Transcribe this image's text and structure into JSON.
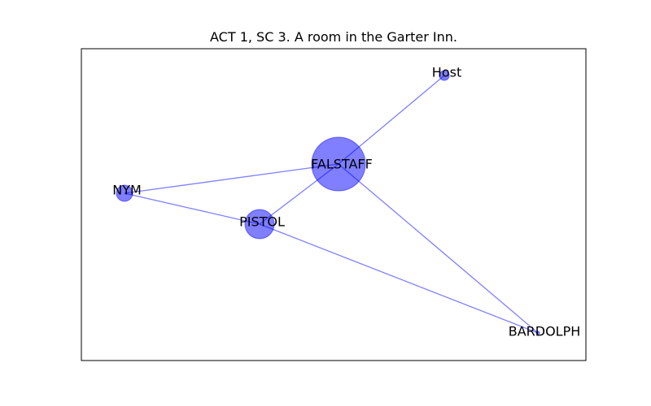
{
  "title": "ACT 1, SC 3. A room in the Garter Inn.",
  "colors": {
    "node": "#0000ff",
    "edge": "#0000ff",
    "frame": "#000000",
    "label": "#000000"
  },
  "nodes": [
    {
      "id": "FALSTAFF",
      "label": "FALSTAFF",
      "weight": 10
    },
    {
      "id": "Host",
      "label": "Host",
      "weight": 1
    },
    {
      "id": "NYM",
      "label": "NYM",
      "weight": 2
    },
    {
      "id": "PISTOL",
      "label": "PISTOL",
      "weight": 4
    },
    {
      "id": "BARDOLPH",
      "label": "BARDOLPH",
      "weight": 0
    }
  ],
  "edges": [
    {
      "source": "FALSTAFF",
      "target": "Host"
    },
    {
      "source": "FALSTAFF",
      "target": "NYM"
    },
    {
      "source": "FALSTAFF",
      "target": "PISTOL"
    },
    {
      "source": "FALSTAFF",
      "target": "BARDOLPH"
    },
    {
      "source": "NYM",
      "target": "PISTOL"
    },
    {
      "source": "PISTOL",
      "target": "BARDOLPH"
    }
  ]
}
